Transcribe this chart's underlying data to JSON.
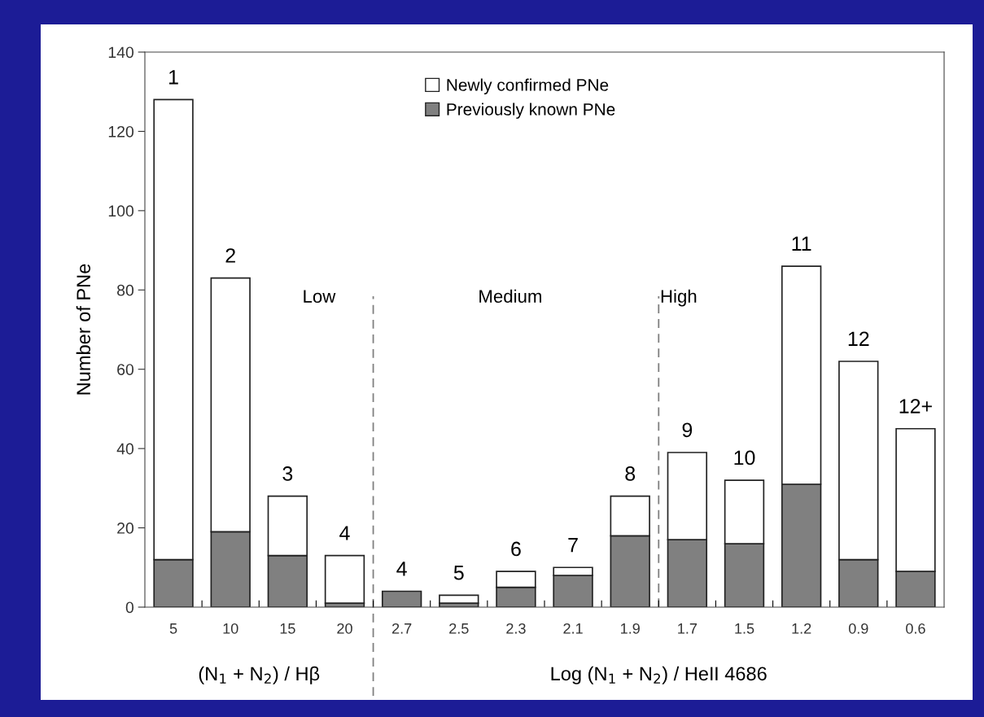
{
  "chart_data": {
    "type": "bar",
    "stacked": true,
    "categories": [
      "5",
      "10",
      "15",
      "20",
      "2.7",
      "2.5",
      "2.3",
      "2.1",
      "1.9",
      "1.7",
      "1.5",
      "1.2",
      "0.9",
      "0.6"
    ],
    "series": [
      {
        "name": "Previously known PNe",
        "color": "#808080",
        "values": [
          12,
          19,
          13,
          1,
          4,
          1,
          5,
          8,
          18,
          17,
          16,
          31,
          12,
          9
        ]
      },
      {
        "name": "Newly confirmed PNe",
        "color": "#ffffff",
        "values": [
          116,
          64,
          15,
          12,
          0,
          2,
          4,
          2,
          10,
          22,
          16,
          55,
          50,
          36
        ]
      }
    ],
    "ylabel": "Number of PNe",
    "xlabel": "Log (N$_{1}$ + N$_{2}$) / HeII 4686",
    "ylim": [
      0,
      140
    ],
    "yticks": [
      0,
      20,
      40,
      60,
      80,
      100,
      120,
      140
    ],
    "grid": false,
    "legend": "top",
    "annotations": [
      "Low",
      "Medium",
      "High",
      "(N$_{1}$ + N$_{2}$) / Hβ",
      {
        "text": "1",
        "x": "5",
        "y": 128
      },
      {
        "text": "2",
        "x": "10",
        "y": 83
      },
      {
        "text": "3",
        "x": "15",
        "y": 28
      },
      {
        "text": "4",
        "x": "20",
        "y": 13
      },
      {
        "text": "4",
        "x": "2.7",
        "y": 4
      },
      {
        "text": "5",
        "x": "2.5",
        "y": 3
      },
      {
        "text": "6",
        "x": "2.3",
        "y": 9
      },
      {
        "text": "7",
        "x": "2.1",
        "y": 10
      },
      {
        "text": "8",
        "x": "1.9",
        "y": 28
      },
      {
        "text": "9",
        "x": "1.7",
        "y": 39
      },
      {
        "text": "10",
        "x": "1.5",
        "y": 32
      },
      {
        "text": "11",
        "x": "1.2",
        "y": 86
      },
      {
        "text": "12",
        "x": "0.9",
        "y": 62
      },
      {
        "text": "12+",
        "x": "0.6",
        "y": 45
      }
    ]
  }
}
